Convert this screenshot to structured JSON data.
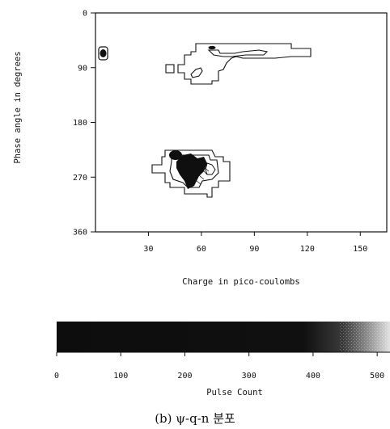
{
  "chart_data": [
    {
      "type": "contour",
      "xlabel": "Charge in pico-coulombs",
      "ylabel": "Phase angle in degrees",
      "x_ticks": [
        30,
        60,
        90,
        120,
        150
      ],
      "y_ticks": [
        0,
        90,
        180,
        270,
        360
      ],
      "xlim": [
        0,
        165
      ],
      "ylim": [
        360,
        0
      ],
      "y_inverted": true,
      "grid": false,
      "clusters": [
        {
          "charge_center": 4,
          "phase_center": 67,
          "description": "small dense spot"
        },
        {
          "charge_center": 75,
          "phase_center": 72,
          "description": "sparse elongated region",
          "charge_range": [
            42,
            120
          ],
          "phase_range": [
            45,
            105
          ]
        },
        {
          "charge_center": 52,
          "phase_center": 265,
          "description": "dense core region",
          "charge_range": [
            38,
            70
          ],
          "phase_range": [
            230,
            300
          ]
        }
      ]
    },
    {
      "type": "colorbar",
      "label": "Pulse Count",
      "ticks": [
        0,
        100,
        200,
        300,
        400,
        500
      ],
      "range": [
        0,
        520
      ]
    }
  ],
  "caption": "(b) ψ-q-n 분포",
  "colors": {
    "ink": "#111111",
    "background": "#ffffff"
  }
}
